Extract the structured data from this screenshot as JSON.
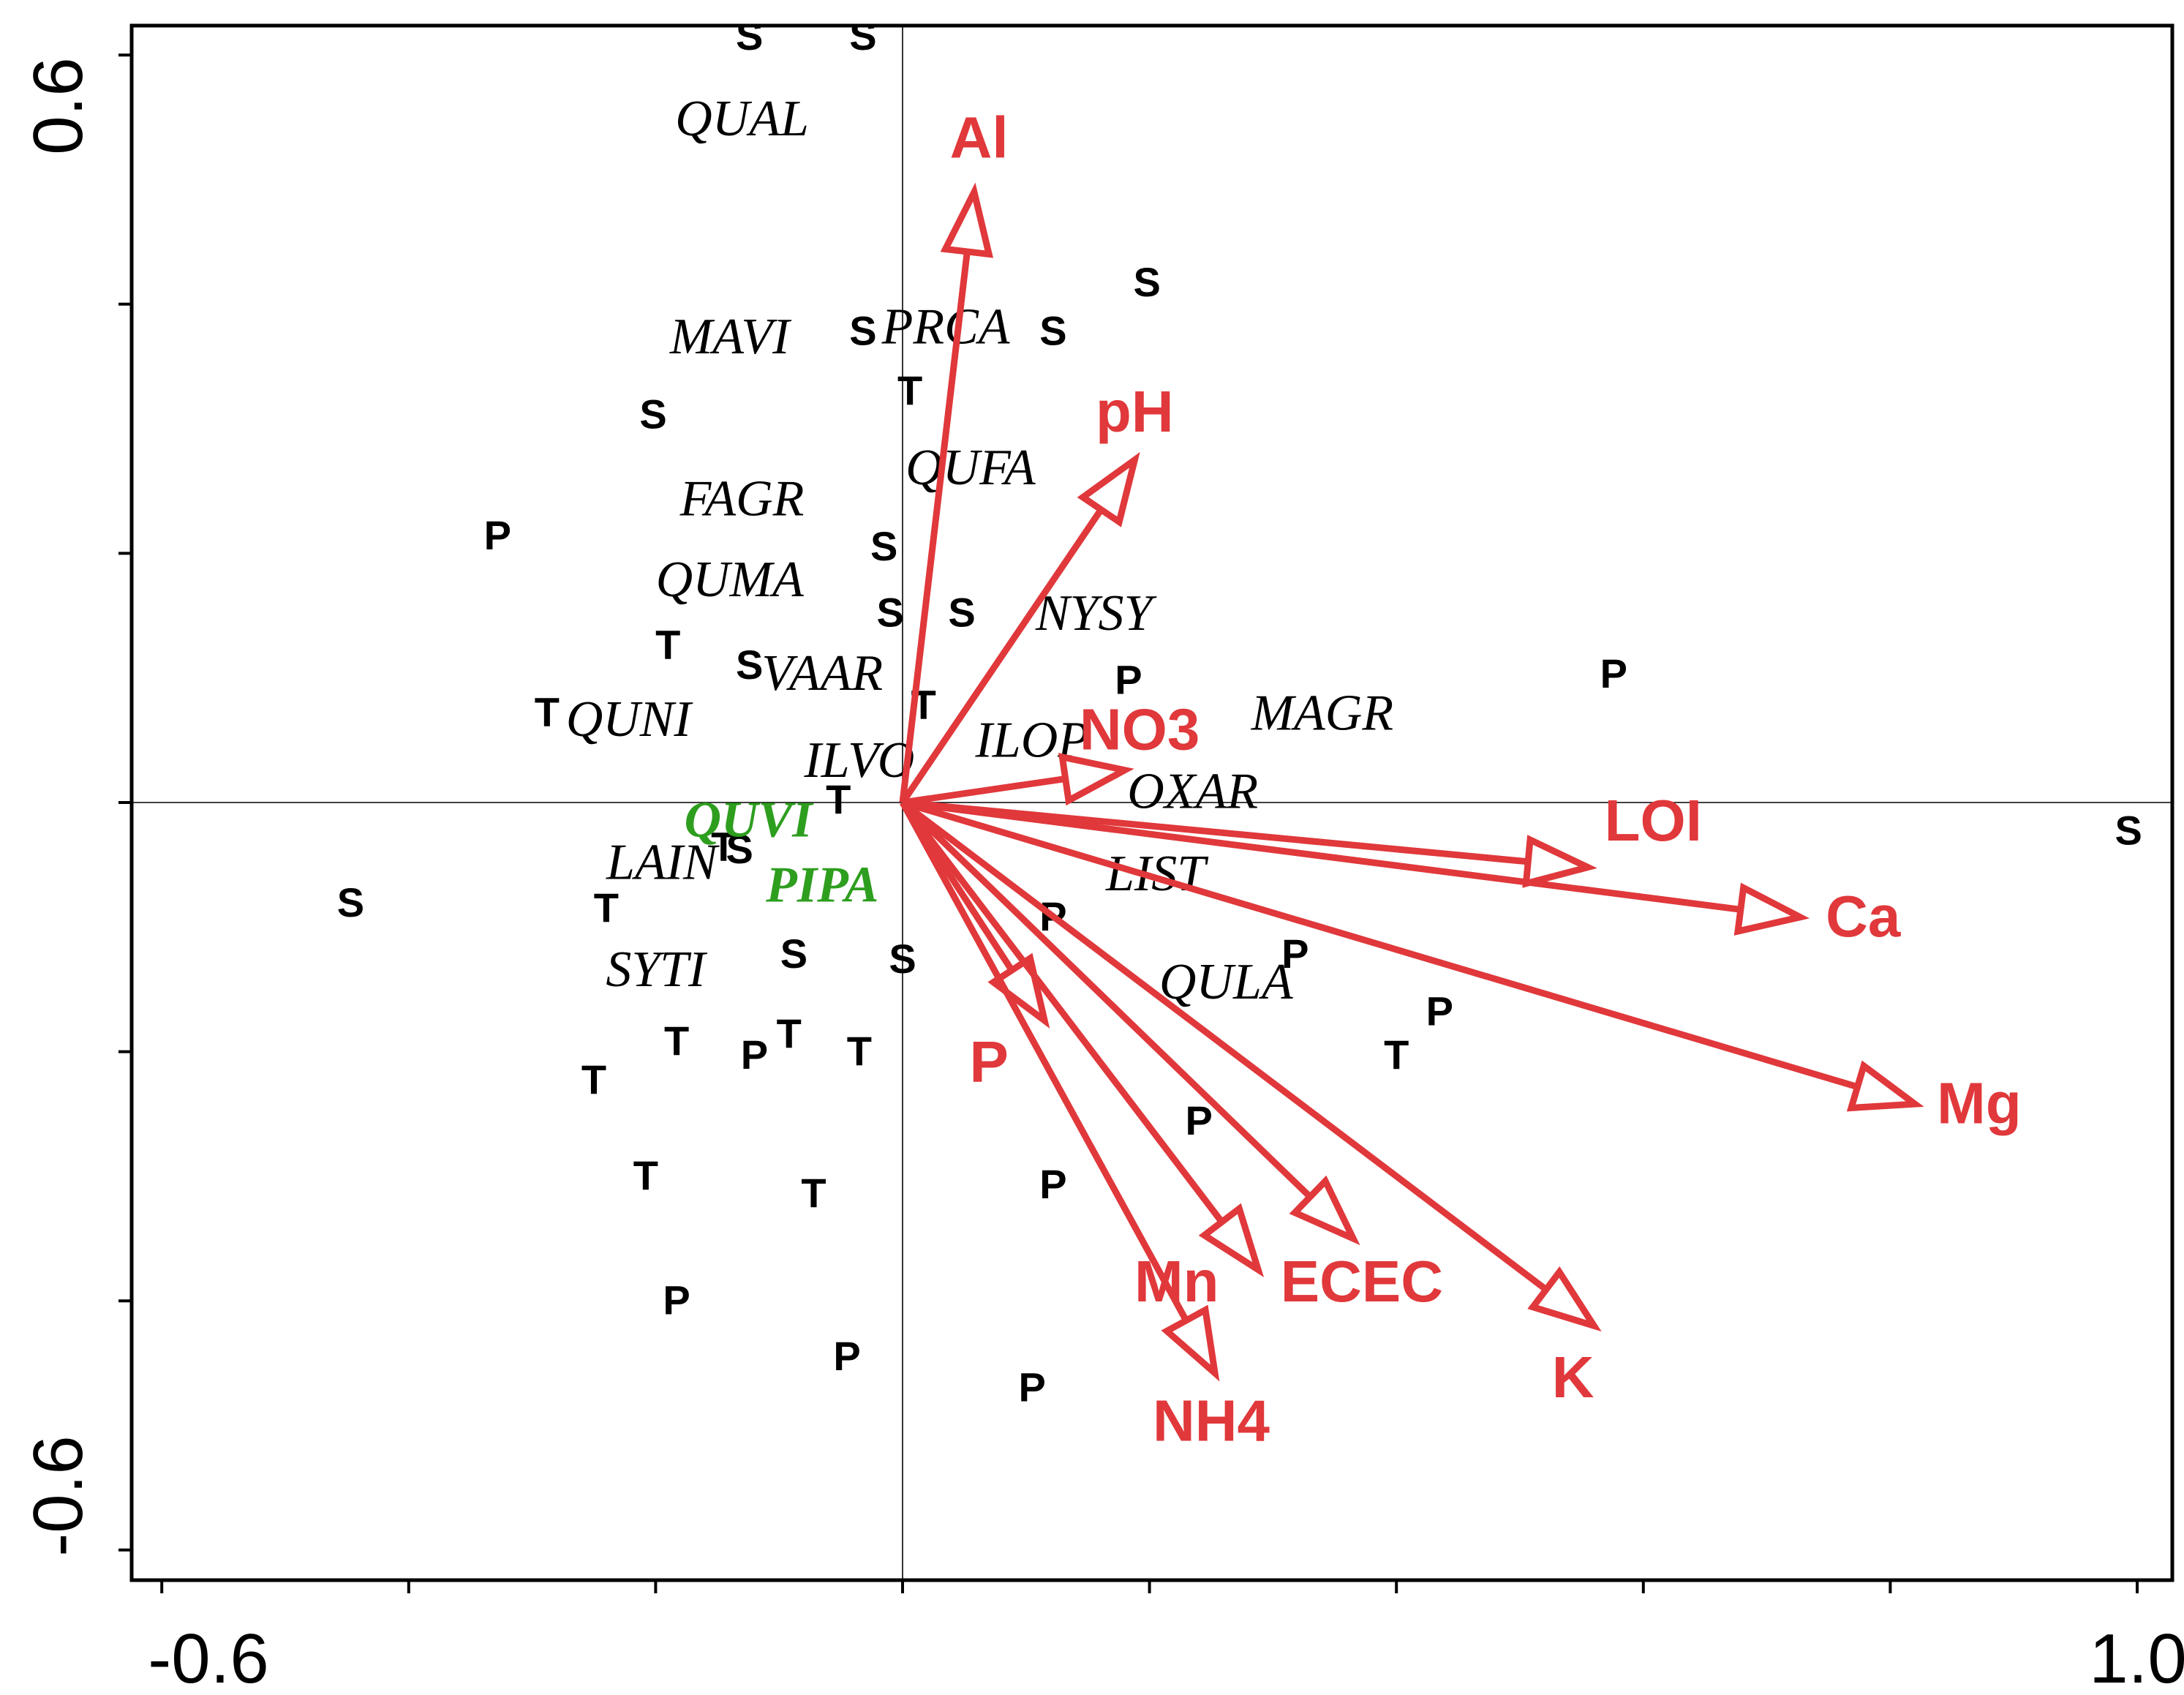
{
  "chart_data": {
    "type": "scatter",
    "subtype": "ordination-biplot",
    "xlim": [
      -0.6,
      1.0
    ],
    "ylim": [
      -0.6,
      0.6
    ],
    "x_tick_labels": [
      "-0.6",
      "1.0"
    ],
    "y_tick_labels": [
      "0.6",
      "-0.6"
    ],
    "x_minor_ticks": [
      -0.6,
      -0.4,
      -0.2,
      0.0,
      0.2,
      0.4,
      0.6,
      0.8,
      1.0
    ],
    "y_minor_ticks": [
      0.6,
      0.4,
      0.2,
      0.0,
      -0.2,
      -0.4,
      -0.6
    ],
    "zero_lines": true,
    "colors": {
      "env": "#e0383b",
      "highlight_species": "#2e9e1f",
      "default": "#000000"
    },
    "sites": [
      {
        "label": "S",
        "x": -0.124,
        "y": 0.613
      },
      {
        "label": "S",
        "x": -0.032,
        "y": 0.613
      },
      {
        "label": "S",
        "x": 0.198,
        "y": 0.415
      },
      {
        "label": "S",
        "x": -0.032,
        "y": 0.376
      },
      {
        "label": "S",
        "x": 0.122,
        "y": 0.376
      },
      {
        "label": "S",
        "x": -0.202,
        "y": 0.309
      },
      {
        "label": "S",
        "x": -0.015,
        "y": 0.203
      },
      {
        "label": "S",
        "x": -0.01,
        "y": 0.15
      },
      {
        "label": "S",
        "x": 0.048,
        "y": 0.15
      },
      {
        "label": "S",
        "x": -0.124,
        "y": 0.108
      },
      {
        "label": "S",
        "x": -0.132,
        "y": -0.04
      },
      {
        "label": "S",
        "x": -0.447,
        "y": -0.083
      },
      {
        "label": "S",
        "x": -0.088,
        "y": -0.124
      },
      {
        "label": "S",
        "x": 0.0,
        "y": -0.128
      },
      {
        "label": "S",
        "x": 0.993,
        "y": -0.025
      },
      {
        "label": "T",
        "x": 0.006,
        "y": 0.328
      },
      {
        "label": "T",
        "x": -0.19,
        "y": 0.124
      },
      {
        "label": "T",
        "x": -0.288,
        "y": 0.07
      },
      {
        "label": "T",
        "x": 0.017,
        "y": 0.076
      },
      {
        "label": "T",
        "x": -0.052,
        "y": 0.0
      },
      {
        "label": "T",
        "x": -0.145,
        "y": -0.038
      },
      {
        "label": "T",
        "x": -0.24,
        "y": -0.087
      },
      {
        "label": "T",
        "x": -0.183,
        "y": -0.194
      },
      {
        "label": "T",
        "x": -0.092,
        "y": -0.188
      },
      {
        "label": "T",
        "x": -0.035,
        "y": -0.202
      },
      {
        "label": "T",
        "x": -0.25,
        "y": -0.225
      },
      {
        "label": "T",
        "x": -0.208,
        "y": -0.302
      },
      {
        "label": "T",
        "x": -0.072,
        "y": -0.316
      },
      {
        "label": "T",
        "x": 0.4,
        "y": -0.205
      },
      {
        "label": "P",
        "x": -0.328,
        "y": 0.212
      },
      {
        "label": "P",
        "x": 0.183,
        "y": 0.096
      },
      {
        "label": "P",
        "x": 0.576,
        "y": 0.101
      },
      {
        "label": "P",
        "x": 0.122,
        "y": -0.094
      },
      {
        "label": "P",
        "x": 0.318,
        "y": -0.124
      },
      {
        "label": "P",
        "x": 0.435,
        "y": -0.17
      },
      {
        "label": "P",
        "x": -0.12,
        "y": -0.205
      },
      {
        "label": "P",
        "x": 0.24,
        "y": -0.258
      },
      {
        "label": "P",
        "x": 0.122,
        "y": -0.309
      },
      {
        "label": "P",
        "x": -0.183,
        "y": -0.402
      },
      {
        "label": "P",
        "x": -0.045,
        "y": -0.447
      },
      {
        "label": "P",
        "x": 0.105,
        "y": -0.472
      }
    ],
    "species": [
      {
        "label": "QUAL",
        "x": -0.13,
        "y": 0.545,
        "highlight": false
      },
      {
        "label": "MAVI",
        "x": -0.14,
        "y": 0.37,
        "highlight": false
      },
      {
        "label": "PRCA",
        "x": 0.035,
        "y": 0.378,
        "highlight": false
      },
      {
        "label": "QUFA",
        "x": 0.055,
        "y": 0.265,
        "highlight": false
      },
      {
        "label": "FAGR",
        "x": -0.13,
        "y": 0.24,
        "highlight": false
      },
      {
        "label": "QUMA",
        "x": -0.14,
        "y": 0.175,
        "highlight": false
      },
      {
        "label": "NYSY",
        "x": 0.155,
        "y": 0.148,
        "highlight": false
      },
      {
        "label": "VAAR",
        "x": -0.065,
        "y": 0.1,
        "highlight": false
      },
      {
        "label": "MAGR",
        "x": 0.34,
        "y": 0.068,
        "highlight": false
      },
      {
        "label": "QUNI",
        "x": -0.222,
        "y": 0.063,
        "highlight": false
      },
      {
        "label": "ILOP",
        "x": 0.105,
        "y": 0.046,
        "highlight": false
      },
      {
        "label": "ILVO",
        "x": -0.035,
        "y": 0.03,
        "highlight": false
      },
      {
        "label": "OXAR",
        "x": 0.235,
        "y": 0.005,
        "highlight": false
      },
      {
        "label": "QUVI",
        "x": -0.125,
        "y": -0.018,
        "highlight": true
      },
      {
        "label": "LAIN",
        "x": -0.195,
        "y": -0.052,
        "highlight": false
      },
      {
        "label": "PIPA",
        "x": -0.065,
        "y": -0.07,
        "highlight": true
      },
      {
        "label": "LIST",
        "x": 0.205,
        "y": -0.061,
        "highlight": false
      },
      {
        "label": "QULA",
        "x": 0.262,
        "y": -0.148,
        "highlight": false
      },
      {
        "label": "SYTI",
        "x": -0.2,
        "y": -0.138,
        "highlight": false
      }
    ],
    "env_vectors": [
      {
        "label": "Al",
        "x": 0.058,
        "y": 0.49
      },
      {
        "label": "pH",
        "x": 0.188,
        "y": 0.275
      },
      {
        "label": "NO3",
        "x": 0.18,
        "y": 0.026
      },
      {
        "label": "LOI",
        "x": 0.555,
        "y": -0.052
      },
      {
        "label": "Ca",
        "x": 0.727,
        "y": -0.092
      },
      {
        "label": "Mg",
        "x": 0.82,
        "y": -0.242
      },
      {
        "label": "P",
        "x": 0.115,
        "y": -0.175
      },
      {
        "label": "ECEC",
        "x": 0.365,
        "y": -0.35
      },
      {
        "label": "Mn",
        "x": 0.288,
        "y": -0.375
      },
      {
        "label": "NH4",
        "x": 0.253,
        "y": -0.458
      },
      {
        "label": "K",
        "x": 0.56,
        "y": -0.42
      }
    ],
    "env_label_positions": {
      "Al": [
        0.062,
        0.53
      ],
      "pH": [
        0.188,
        0.31
      ],
      "NO3": [
        0.192,
        0.055
      ],
      "LOI": [
        0.608,
        -0.018
      ],
      "Ca": [
        0.778,
        -0.095
      ],
      "Mg": [
        0.872,
        -0.245
      ],
      "P": [
        0.07,
        -0.212
      ],
      "ECEC": [
        0.372,
        -0.388
      ],
      "Mn": [
        0.222,
        -0.388
      ],
      "NH4": [
        0.25,
        -0.5
      ],
      "K": [
        0.543,
        -0.465
      ]
    }
  }
}
